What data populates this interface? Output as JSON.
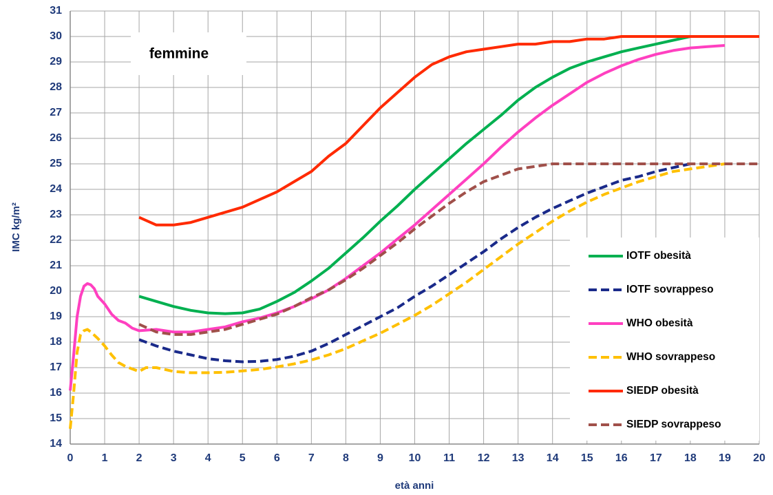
{
  "chart_data": {
    "type": "line",
    "annotation": "femmine",
    "xlabel": "età anni",
    "ylabel": "IMC kg/m²",
    "xlim": [
      0,
      20
    ],
    "ylim": [
      14,
      31
    ],
    "xticks": [
      0,
      1,
      2,
      3,
      4,
      5,
      6,
      7,
      8,
      9,
      10,
      11,
      12,
      13,
      14,
      15,
      16,
      17,
      18,
      19,
      20
    ],
    "yticks": [
      14,
      15,
      16,
      17,
      18,
      19,
      20,
      21,
      22,
      23,
      24,
      25,
      26,
      27,
      28,
      29,
      30,
      31
    ],
    "grid": true,
    "legend": "lower right",
    "series": [
      {
        "name": "IOTF obesità",
        "color": "#00b050",
        "dashed": false,
        "x": [
          2,
          2.5,
          3,
          3.5,
          4,
          4.5,
          5,
          5.5,
          6,
          6.5,
          7,
          7.5,
          8,
          8.5,
          9,
          9.5,
          10,
          10.5,
          11,
          11.5,
          12,
          12.5,
          13,
          13.5,
          14,
          14.5,
          15,
          15.5,
          16,
          16.5,
          17,
          17.5,
          18
        ],
        "values": [
          19.8,
          19.6,
          19.4,
          19.25,
          19.15,
          19.12,
          19.15,
          19.3,
          19.6,
          19.95,
          20.4,
          20.9,
          21.5,
          22.1,
          22.75,
          23.35,
          24.0,
          24.6,
          25.2,
          25.8,
          26.35,
          26.9,
          27.5,
          28.0,
          28.4,
          28.75,
          29.0,
          29.2,
          29.4,
          29.55,
          29.7,
          29.85,
          30.0
        ]
      },
      {
        "name": "IOTF sovrappeso",
        "color": "#1a2a8a",
        "dashed": true,
        "x": [
          2,
          2.5,
          3,
          3.5,
          4,
          4.5,
          5,
          5.5,
          6,
          6.5,
          7,
          7.5,
          8,
          8.5,
          9,
          9.5,
          10,
          10.5,
          11,
          11.5,
          12,
          12.5,
          13,
          13.5,
          14,
          14.5,
          15,
          15.5,
          16,
          16.5,
          17,
          17.5,
          18
        ],
        "values": [
          18.1,
          17.85,
          17.65,
          17.5,
          17.35,
          17.27,
          17.23,
          17.25,
          17.32,
          17.45,
          17.65,
          17.95,
          18.3,
          18.65,
          19.0,
          19.35,
          19.8,
          20.2,
          20.65,
          21.1,
          21.55,
          22.05,
          22.5,
          22.9,
          23.25,
          23.55,
          23.85,
          24.1,
          24.35,
          24.5,
          24.7,
          24.85,
          25.0
        ]
      },
      {
        "name": "WHO  obesità",
        "color": "#ff40c0",
        "dashed": false,
        "x": [
          0,
          0.1,
          0.2,
          0.3,
          0.4,
          0.5,
          0.6,
          0.7,
          0.8,
          1,
          1.2,
          1.4,
          1.6,
          1.8,
          2,
          2.5,
          3,
          3.5,
          4,
          4.5,
          5,
          5.5,
          6,
          6.5,
          7,
          7.5,
          8,
          8.5,
          9,
          9.5,
          10,
          10.5,
          11,
          11.5,
          12,
          12.5,
          13,
          13.5,
          14,
          14.5,
          15,
          15.5,
          16,
          16.5,
          17,
          17.5,
          18,
          18.5,
          19
        ],
        "values": [
          16.1,
          17.5,
          19.0,
          19.8,
          20.2,
          20.3,
          20.25,
          20.1,
          19.8,
          19.5,
          19.1,
          18.85,
          18.75,
          18.55,
          18.45,
          18.5,
          18.4,
          18.4,
          18.5,
          18.6,
          18.8,
          18.95,
          19.15,
          19.4,
          19.7,
          20.05,
          20.5,
          21.0,
          21.5,
          22.05,
          22.6,
          23.2,
          23.8,
          24.4,
          25.0,
          25.65,
          26.25,
          26.8,
          27.3,
          27.75,
          28.2,
          28.55,
          28.85,
          29.1,
          29.3,
          29.45,
          29.55,
          29.6,
          29.65
        ]
      },
      {
        "name": "WHO sovrappeso",
        "color": "#ffc000",
        "dashed": true,
        "x": [
          0,
          0.1,
          0.2,
          0.3,
          0.4,
          0.5,
          0.6,
          0.8,
          1,
          1.2,
          1.4,
          1.6,
          1.8,
          2,
          2.2,
          2.5,
          3,
          3.5,
          4,
          4.5,
          5,
          5.5,
          6,
          6.5,
          7,
          7.5,
          8,
          8.5,
          9,
          9.5,
          10,
          10.5,
          11,
          11.5,
          12,
          12.5,
          13,
          13.5,
          14,
          14.5,
          15,
          15.5,
          16,
          16.5,
          17,
          17.5,
          18,
          18.5,
          19
        ],
        "values": [
          14.6,
          16.0,
          17.6,
          18.3,
          18.45,
          18.5,
          18.4,
          18.15,
          17.85,
          17.5,
          17.2,
          17.05,
          16.95,
          16.85,
          17.0,
          17.0,
          16.85,
          16.8,
          16.8,
          16.82,
          16.87,
          16.93,
          17.03,
          17.15,
          17.3,
          17.5,
          17.75,
          18.05,
          18.35,
          18.7,
          19.05,
          19.45,
          19.9,
          20.35,
          20.85,
          21.35,
          21.85,
          22.3,
          22.75,
          23.15,
          23.5,
          23.8,
          24.05,
          24.3,
          24.5,
          24.7,
          24.8,
          24.9,
          25.0
        ]
      },
      {
        "name": "SIEDP obesità",
        "color": "#ff2a00",
        "dashed": false,
        "x": [
          2,
          2.5,
          3,
          3.5,
          4,
          4.5,
          5,
          5.5,
          6,
          6.5,
          7,
          7.5,
          8,
          8.5,
          9,
          9.5,
          10,
          10.5,
          11,
          11.5,
          12,
          12.5,
          13,
          13.5,
          14,
          14.5,
          15,
          15.5,
          16,
          17,
          18,
          19,
          20
        ],
        "values": [
          22.9,
          22.6,
          22.6,
          22.7,
          22.9,
          23.1,
          23.3,
          23.6,
          23.9,
          24.3,
          24.7,
          25.3,
          25.8,
          26.5,
          27.2,
          27.8,
          28.4,
          28.9,
          29.2,
          29.4,
          29.5,
          29.6,
          29.7,
          29.7,
          29.8,
          29.8,
          29.9,
          29.9,
          30.0,
          30.0,
          30.0,
          30.0,
          30.0
        ]
      },
      {
        "name": "SIEDP sovrappeso",
        "color": "#a0504a",
        "dashed": true,
        "x": [
          2,
          2.5,
          3,
          3.5,
          4,
          4.5,
          5,
          5.5,
          6,
          6.5,
          7,
          7.5,
          8,
          8.5,
          9,
          9.5,
          10,
          10.5,
          11,
          11.5,
          12,
          12.5,
          13,
          13.5,
          14,
          15,
          16,
          17,
          18,
          19,
          20
        ],
        "values": [
          18.7,
          18.4,
          18.3,
          18.3,
          18.4,
          18.5,
          18.7,
          18.9,
          19.1,
          19.4,
          19.75,
          20.05,
          20.45,
          20.9,
          21.4,
          21.9,
          22.45,
          22.95,
          23.45,
          23.9,
          24.3,
          24.55,
          24.8,
          24.9,
          25.0,
          25.0,
          25.0,
          25.0,
          25.0,
          25.0,
          25.0
        ]
      }
    ]
  }
}
